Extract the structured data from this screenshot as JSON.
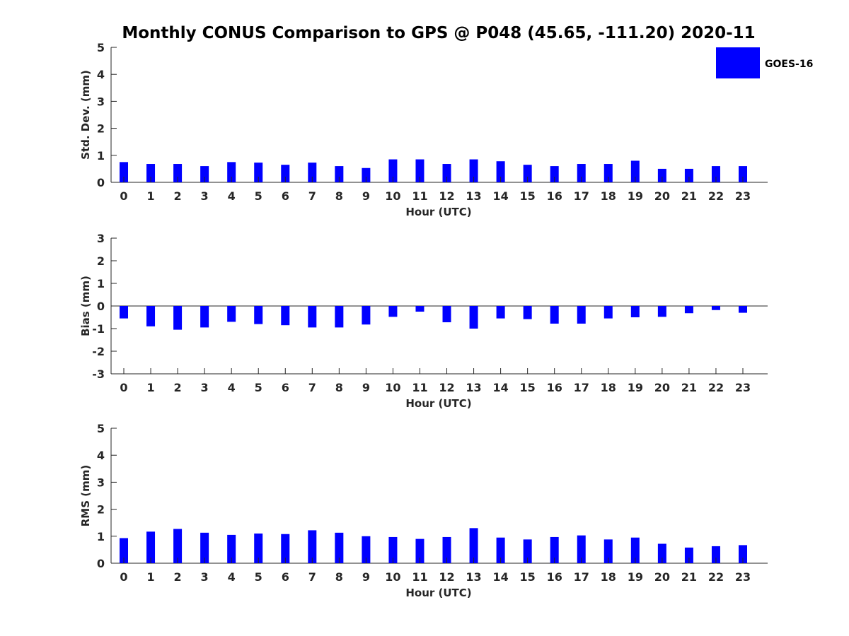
{
  "title": "Monthly CONUS Comparison to GPS @ P048 (45.65, -111.20) 2020-11",
  "legend": {
    "label": "GOES-16",
    "color": "#0000ff",
    "placement": "top-right"
  },
  "chart_data": [
    {
      "type": "bar",
      "xlabel": "Hour (UTC)",
      "ylabel": "Std. Dev. (mm)",
      "ylim": [
        0,
        5
      ],
      "yticks": [
        0,
        1,
        2,
        3,
        4,
        5
      ],
      "categories": [
        "0",
        "1",
        "2",
        "3",
        "4",
        "5",
        "6",
        "7",
        "8",
        "9",
        "10",
        "11",
        "12",
        "13",
        "14",
        "15",
        "16",
        "17",
        "18",
        "19",
        "20",
        "21",
        "22",
        "23"
      ],
      "series": [
        {
          "name": "GOES-16",
          "color": "#0000ff",
          "values": [
            0.75,
            0.68,
            0.68,
            0.6,
            0.75,
            0.73,
            0.65,
            0.73,
            0.6,
            0.53,
            0.85,
            0.85,
            0.68,
            0.85,
            0.78,
            0.65,
            0.6,
            0.68,
            0.68,
            0.8,
            0.5,
            0.5,
            0.6,
            0.6
          ]
        }
      ]
    },
    {
      "type": "bar",
      "xlabel": "Hour (UTC)",
      "ylabel": "Bias (mm)",
      "ylim": [
        -3,
        3
      ],
      "yticks": [
        -3,
        -2,
        -1,
        0,
        1,
        2,
        3
      ],
      "zero_line": true,
      "categories": [
        "0",
        "1",
        "2",
        "3",
        "4",
        "5",
        "6",
        "7",
        "8",
        "9",
        "10",
        "11",
        "12",
        "13",
        "14",
        "15",
        "16",
        "17",
        "18",
        "19",
        "20",
        "21",
        "22",
        "23"
      ],
      "series": [
        {
          "name": "GOES-16",
          "color": "#0000ff",
          "values": [
            -0.55,
            -0.9,
            -1.05,
            -0.95,
            -0.7,
            -0.8,
            -0.85,
            -0.95,
            -0.95,
            -0.82,
            -0.48,
            -0.25,
            -0.72,
            -1.0,
            -0.55,
            -0.58,
            -0.78,
            -0.78,
            -0.55,
            -0.5,
            -0.48,
            -0.32,
            -0.18,
            -0.3
          ]
        }
      ]
    },
    {
      "type": "bar",
      "xlabel": "Hour (UTC)",
      "ylabel": "RMS (mm)",
      "ylim": [
        0,
        5
      ],
      "yticks": [
        0,
        1,
        2,
        3,
        4,
        5
      ],
      "categories": [
        "0",
        "1",
        "2",
        "3",
        "4",
        "5",
        "6",
        "7",
        "8",
        "9",
        "10",
        "11",
        "12",
        "13",
        "14",
        "15",
        "16",
        "17",
        "18",
        "19",
        "20",
        "21",
        "22",
        "23"
      ],
      "series": [
        {
          "name": "GOES-16",
          "color": "#0000ff",
          "values": [
            0.93,
            1.17,
            1.27,
            1.13,
            1.05,
            1.1,
            1.08,
            1.22,
            1.13,
            1.0,
            0.97,
            0.9,
            0.97,
            1.3,
            0.95,
            0.88,
            0.97,
            1.03,
            0.88,
            0.95,
            0.72,
            0.58,
            0.63,
            0.67
          ]
        }
      ]
    }
  ]
}
